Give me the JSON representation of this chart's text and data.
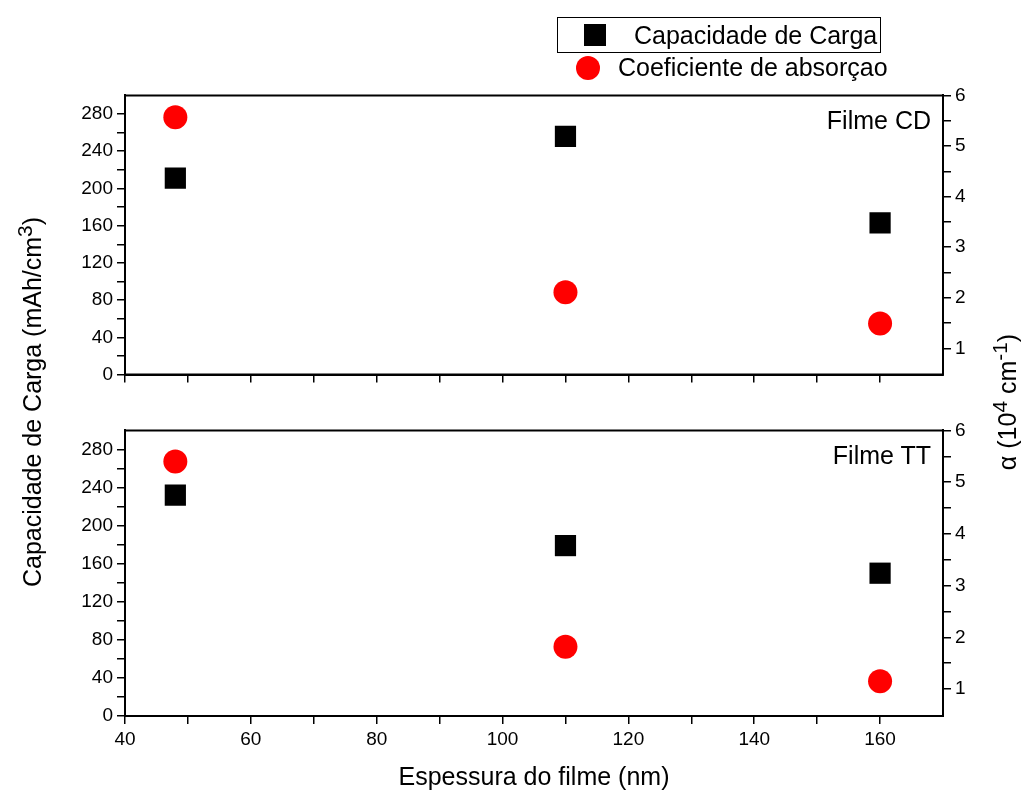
{
  "chart_data": [
    {
      "type": "scatter",
      "x": [
        48,
        110,
        160
      ],
      "ylabel": "Capacidade de Carga (mAh/cm$^{3}$)",
      "y2label": "α (10$^{4}$ cm$^{-1}$)",
      "annotations": [
        "Filme CD"
      ],
      "legend": "top right",
      "grid": false,
      "tick_labels": "y",
      "series": [
        {
          "name": "Capacidade de Carga",
          "color": "#000000",
          "marker": "square",
          "values": [
            211,
            256,
            163
          ]
        },
        {
          "name": "Coeficiente de absorçao",
          "color": "#ff0000",
          "marker": "circle",
          "axis": "y2",
          "values": [
            5.57,
            2.11,
            1.49
          ]
        }
      ],
      "xlim": [
        40,
        170
      ],
      "xticks": [
        40,
        {
          "value": 50,
          "label": null
        },
        60,
        {
          "value": 70,
          "label": null
        },
        80,
        {
          "value": 90,
          "label": null
        },
        100,
        {
          "value": 110,
          "label": null
        },
        120,
        {
          "value": 130,
          "label": null
        },
        140,
        {
          "value": 150,
          "label": null
        },
        160
      ],
      "ylim": [
        0,
        300
      ],
      "yticks": [
        0,
        {
          "value": 20,
          "label": null
        },
        40,
        {
          "value": 60,
          "label": null
        },
        80,
        {
          "value": 100,
          "label": null
        },
        120,
        {
          "value": 140,
          "label": null
        },
        160,
        {
          "value": 180,
          "label": null
        },
        200,
        {
          "value": 220,
          "label": null
        },
        240,
        {
          "value": 260,
          "label": null
        },
        280
      ],
      "y2lim": [
        0.48,
        6
      ],
      "y2ticks": [
        1,
        {
          "value": 1.5,
          "label": null
        },
        2,
        {
          "value": 2.5,
          "label": null
        },
        3,
        {
          "value": 3.5,
          "label": null
        },
        4,
        {
          "value": 4.5,
          "label": null
        },
        5,
        {
          "value": 5.5,
          "label": null
        },
        6
      ]
    },
    {
      "type": "scatter",
      "x": [
        48,
        110,
        160
      ],
      "xlabel": "Espessura do filme (nm)",
      "annotations": [
        "Filme TT"
      ],
      "grid": false,
      "series": [
        {
          "color": "#000000",
          "marker": "square",
          "values": [
            232,
            179,
            150
          ]
        },
        {
          "color": "#ff0000",
          "marker": "circle",
          "axis": "y2",
          "values": [
            5.4,
            1.82,
            1.15
          ]
        }
      ],
      "xlim": [
        40,
        170
      ],
      "xticks": [
        40,
        {
          "value": 50,
          "label": null
        },
        60,
        {
          "value": 70,
          "label": null
        },
        80,
        {
          "value": 90,
          "label": null
        },
        100,
        {
          "value": 110,
          "label": null
        },
        120,
        {
          "value": 130,
          "label": null
        },
        140,
        {
          "value": 150,
          "label": null
        },
        160
      ],
      "ylim": [
        0,
        300
      ],
      "yticks": [
        0,
        {
          "value": 20,
          "label": null
        },
        40,
        {
          "value": 60,
          "label": null
        },
        80,
        {
          "value": 100,
          "label": null
        },
        120,
        {
          "value": 140,
          "label": null
        },
        160,
        {
          "value": 180,
          "label": null
        },
        200,
        {
          "value": 220,
          "label": null
        },
        240,
        {
          "value": 260,
          "label": null
        },
        280
      ],
      "y2lim": [
        0.48,
        6
      ],
      "y2ticks": [
        1,
        {
          "value": 1.5,
          "label": null
        },
        2,
        {
          "value": 2.5,
          "label": null
        },
        3,
        {
          "value": 3.5,
          "label": null
        },
        4,
        {
          "value": 4.5,
          "label": null
        },
        5,
        {
          "value": 5.5,
          "label": null
        },
        6
      ]
    }
  ]
}
